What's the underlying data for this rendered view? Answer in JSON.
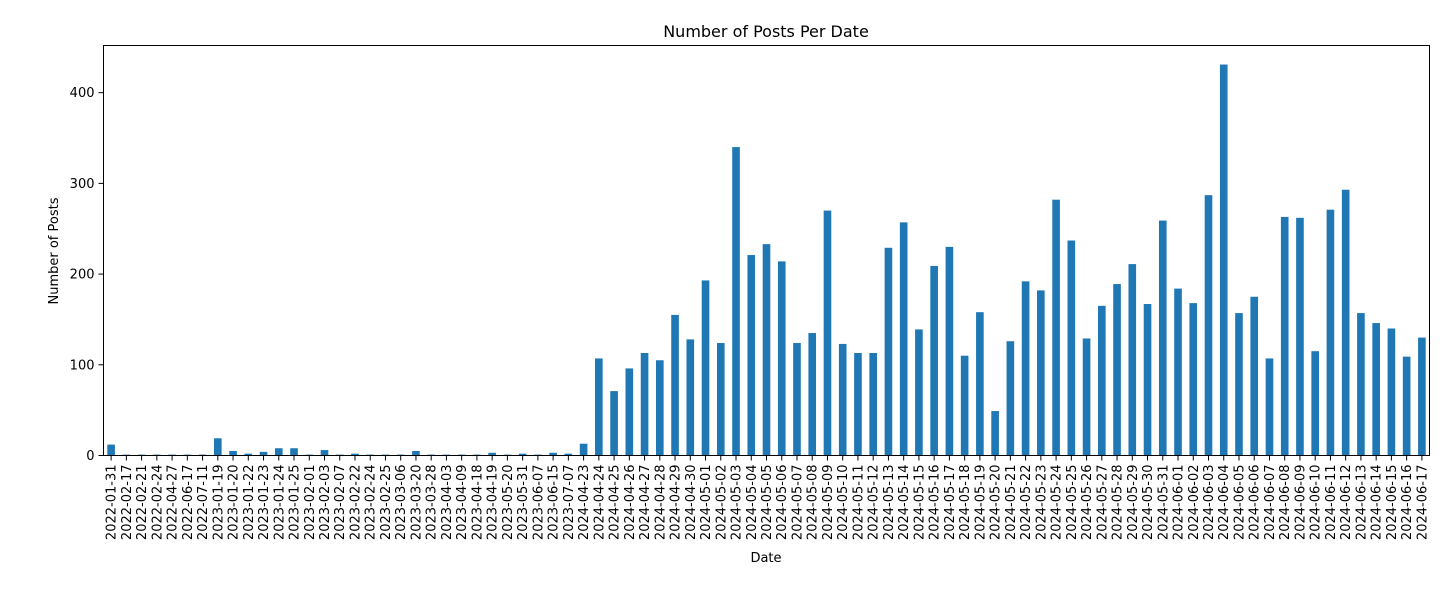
{
  "chart_data": {
    "type": "bar",
    "title": "Number of Posts Per Date",
    "xlabel": "Date",
    "ylabel": "Number of Posts",
    "ylim": [
      0,
      452
    ],
    "yticks": [
      0,
      100,
      200,
      300,
      400
    ],
    "grid": false,
    "color": "#1f77b4",
    "categories": [
      "2022-01-31",
      "2022-02-17",
      "2022-02-21",
      "2022-02-24",
      "2022-04-27",
      "2022-06-17",
      "2022-07-11",
      "2023-01-19",
      "2023-01-20",
      "2023-01-22",
      "2023-01-23",
      "2023-01-24",
      "2023-01-25",
      "2023-02-01",
      "2023-02-03",
      "2023-02-07",
      "2023-02-22",
      "2023-02-24",
      "2023-02-25",
      "2023-03-06",
      "2023-03-20",
      "2023-03-28",
      "2023-04-03",
      "2023-04-09",
      "2023-04-18",
      "2023-04-19",
      "2023-05-20",
      "2023-05-31",
      "2023-06-07",
      "2023-06-15",
      "2023-07-07",
      "2024-04-23",
      "2024-04-24",
      "2024-04-25",
      "2024-04-26",
      "2024-04-27",
      "2024-04-28",
      "2024-04-29",
      "2024-04-30",
      "2024-05-01",
      "2024-05-02",
      "2024-05-03",
      "2024-05-04",
      "2024-05-05",
      "2024-05-06",
      "2024-05-07",
      "2024-05-08",
      "2024-05-09",
      "2024-05-10",
      "2024-05-11",
      "2024-05-12",
      "2024-05-13",
      "2024-05-14",
      "2024-05-15",
      "2024-05-16",
      "2024-05-17",
      "2024-05-18",
      "2024-05-19",
      "2024-05-20",
      "2024-05-21",
      "2024-05-22",
      "2024-05-23",
      "2024-05-24",
      "2024-05-25",
      "2024-05-26",
      "2024-05-27",
      "2024-05-28",
      "2024-05-29",
      "2024-05-30",
      "2024-05-31",
      "2024-06-01",
      "2024-06-02",
      "2024-06-03",
      "2024-06-04",
      "2024-06-05",
      "2024-06-06",
      "2024-06-07",
      "2024-06-08",
      "2024-06-09",
      "2024-06-10",
      "2024-06-11",
      "2024-06-12",
      "2024-06-13",
      "2024-06-14",
      "2024-06-15",
      "2024-06-16",
      "2024-06-17"
    ],
    "values": [
      12,
      1,
      1,
      1,
      1,
      1,
      1,
      19,
      5,
      2,
      4,
      8,
      8,
      1,
      6,
      1,
      2,
      1,
      1,
      1,
      5,
      1,
      1,
      1,
      1,
      3,
      1,
      2,
      1,
      3,
      2,
      13,
      107,
      71,
      96,
      113,
      105,
      155,
      128,
      193,
      124,
      340,
      221,
      233,
      214,
      124,
      135,
      270,
      123,
      113,
      113,
      229,
      257,
      139,
      209,
      230,
      110,
      158,
      49,
      126,
      192,
      182,
      282,
      237,
      129,
      165,
      189,
      211,
      167,
      259,
      184,
      168,
      287,
      431,
      157,
      175,
      107,
      263,
      262,
      115,
      271,
      293,
      157,
      146,
      140,
      109,
      130
    ]
  }
}
